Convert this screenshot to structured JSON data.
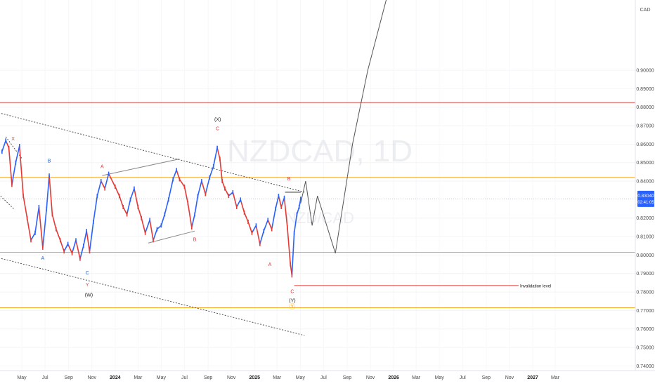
{
  "chart_data": {
    "type": "line",
    "symbol": "NZDCAD, 1D",
    "symbol_sub": "NZD/CAD",
    "currency": "CAD",
    "ylim": [
      0.7375,
      0.938
    ],
    "y_ticks": [
      {
        "label": "0.90000",
        "value": 0.9
      },
      {
        "label": "0.89000",
        "value": 0.89
      },
      {
        "label": "0.88000",
        "value": 0.88
      },
      {
        "label": "0.87000",
        "value": 0.87
      },
      {
        "label": "0.86000",
        "value": 0.86
      },
      {
        "label": "0.85000",
        "value": 0.85
      },
      {
        "label": "0.84000",
        "value": 0.84
      },
      {
        "label": "0.82000",
        "value": 0.82
      },
      {
        "label": "0.81000",
        "value": 0.81
      },
      {
        "label": "0.80000",
        "value": 0.8
      },
      {
        "label": "0.79000",
        "value": 0.79
      },
      {
        "label": "0.78000",
        "value": 0.78
      },
      {
        "label": "0.77000",
        "value": 0.77
      },
      {
        "label": "0.76000",
        "value": 0.76
      },
      {
        "label": "0.75000",
        "value": 0.75
      },
      {
        "label": "0.74000",
        "value": 0.74
      }
    ],
    "x_ticks": [
      {
        "label": "May",
        "date": "2023-05-01"
      },
      {
        "label": "Jul",
        "date": "2023-07-01"
      },
      {
        "label": "Sep",
        "date": "2023-09-01"
      },
      {
        "label": "Nov",
        "date": "2023-11-01"
      },
      {
        "label": "2024",
        "date": "2024-01-01",
        "bold": true
      },
      {
        "label": "Mar",
        "date": "2024-03-01"
      },
      {
        "label": "May",
        "date": "2024-05-01"
      },
      {
        "label": "Jul",
        "date": "2024-07-01"
      },
      {
        "label": "Sep",
        "date": "2024-09-01"
      },
      {
        "label": "Nov",
        "date": "2024-11-01"
      },
      {
        "label": "2025",
        "date": "2025-01-01",
        "bold": true
      },
      {
        "label": "Mar",
        "date": "2025-03-01"
      },
      {
        "label": "May",
        "date": "2025-05-01"
      },
      {
        "label": "Jul",
        "date": "2025-07-01"
      },
      {
        "label": "Sep",
        "date": "2025-09-01"
      },
      {
        "label": "Nov",
        "date": "2025-11-01"
      },
      {
        "label": "2026",
        "date": "2026-01-01",
        "bold": true
      },
      {
        "label": "Mar",
        "date": "2026-03-01"
      },
      {
        "label": "May",
        "date": "2026-05-01"
      },
      {
        "label": "Jul",
        "date": "2026-07-01"
      },
      {
        "label": "Sep",
        "date": "2026-09-01"
      },
      {
        "label": "Nov",
        "date": "2026-11-01"
      },
      {
        "label": "2027",
        "date": "2027-01-01",
        "bold": true
      },
      {
        "label": "Mar",
        "date": "2027-03-01"
      }
    ],
    "current_price": {
      "label": "0.83040",
      "countdown": "02:41:05",
      "value": 0.8304
    },
    "price_series": [
      [
        "2023-03-10",
        0.856
      ],
      [
        "2023-03-20",
        0.862
      ],
      [
        "2023-03-28",
        0.858
      ],
      [
        "2023-04-05",
        0.838
      ],
      [
        "2023-04-15",
        0.85
      ],
      [
        "2023-04-25",
        0.859
      ],
      [
        "2023-05-05",
        0.832
      ],
      [
        "2023-05-15",
        0.82
      ],
      [
        "2023-05-25",
        0.808
      ],
      [
        "2023-06-05",
        0.812
      ],
      [
        "2023-06-15",
        0.826
      ],
      [
        "2023-06-25",
        0.804
      ],
      [
        "2023-07-05",
        0.825
      ],
      [
        "2023-07-12",
        0.843
      ],
      [
        "2023-07-20",
        0.822
      ],
      [
        "2023-07-30",
        0.814
      ],
      [
        "2023-08-10",
        0.808
      ],
      [
        "2023-08-20",
        0.802
      ],
      [
        "2023-08-30",
        0.806
      ],
      [
        "2023-09-10",
        0.801
      ],
      [
        "2023-09-20",
        0.808
      ],
      [
        "2023-10-01",
        0.798
      ],
      [
        "2023-10-10",
        0.805
      ],
      [
        "2023-10-18",
        0.813
      ],
      [
        "2023-10-26",
        0.802
      ],
      [
        "2023-11-05",
        0.818
      ],
      [
        "2023-11-15",
        0.832
      ],
      [
        "2023-11-25",
        0.84
      ],
      [
        "2023-12-05",
        0.836
      ],
      [
        "2023-12-15",
        0.844
      ],
      [
        "2024-01-01",
        0.837
      ],
      [
        "2024-01-12",
        0.832
      ],
      [
        "2024-01-22",
        0.826
      ],
      [
        "2024-02-01",
        0.822
      ],
      [
        "2024-02-10",
        0.83
      ],
      [
        "2024-02-20",
        0.836
      ],
      [
        "2024-03-01",
        0.826
      ],
      [
        "2024-03-10",
        0.82
      ],
      [
        "2024-03-20",
        0.812
      ],
      [
        "2024-04-01",
        0.819
      ],
      [
        "2024-04-10",
        0.808
      ],
      [
        "2024-04-20",
        0.814
      ],
      [
        "2024-05-01",
        0.816
      ],
      [
        "2024-05-10",
        0.822
      ],
      [
        "2024-05-20",
        0.83
      ],
      [
        "2024-06-01",
        0.841
      ],
      [
        "2024-06-10",
        0.846
      ],
      [
        "2024-06-18",
        0.841
      ],
      [
        "2024-07-01",
        0.837
      ],
      [
        "2024-07-10",
        0.828
      ],
      [
        "2024-07-20",
        0.815
      ],
      [
        "2024-07-28",
        0.822
      ],
      [
        "2024-08-05",
        0.832
      ],
      [
        "2024-08-15",
        0.84
      ],
      [
        "2024-08-25",
        0.833
      ],
      [
        "2024-09-05",
        0.842
      ],
      [
        "2024-09-15",
        0.848
      ],
      [
        "2024-09-25",
        0.858
      ],
      [
        "2024-10-02",
        0.852
      ],
      [
        "2024-10-08",
        0.84
      ],
      [
        "2024-10-15",
        0.836
      ],
      [
        "2024-10-25",
        0.832
      ],
      [
        "2024-11-05",
        0.834
      ],
      [
        "2024-11-15",
        0.826
      ],
      [
        "2024-11-25",
        0.83
      ],
      [
        "2024-12-05",
        0.823
      ],
      [
        "2024-12-15",
        0.818
      ],
      [
        "2024-12-25",
        0.812
      ],
      [
        "2025-01-05",
        0.816
      ],
      [
        "2025-01-15",
        0.806
      ],
      [
        "2025-01-25",
        0.813
      ],
      [
        "2025-02-05",
        0.819
      ],
      [
        "2025-02-15",
        0.814
      ],
      [
        "2025-02-25",
        0.825
      ],
      [
        "2025-03-05",
        0.832
      ],
      [
        "2025-03-12",
        0.826
      ],
      [
        "2025-03-20",
        0.831
      ],
      [
        "2025-03-28",
        0.815
      ],
      [
        "2025-04-05",
        0.795
      ],
      [
        "2025-04-09",
        0.789
      ],
      [
        "2025-04-15",
        0.812
      ],
      [
        "2025-04-22",
        0.822
      ],
      [
        "2025-04-28",
        0.826
      ],
      [
        "2025-05-02",
        0.8304
      ]
    ],
    "projection": [
      [
        "2025-05-02",
        0.828
      ],
      [
        "2025-05-15",
        0.84
      ],
      [
        "2025-06-01",
        0.816
      ],
      [
        "2025-06-15",
        0.832
      ],
      [
        "2025-08-01",
        0.801
      ],
      [
        "2025-09-15",
        0.86
      ],
      [
        "2025-10-25",
        0.9
      ],
      [
        "2025-12-15",
        0.94
      ]
    ],
    "horizontal_levels": [
      {
        "value": 0.8825,
        "color": "#e53935"
      },
      {
        "value": 0.842,
        "color": "#f5a623"
      },
      {
        "value": 0.8015,
        "color": "#f5a623"
      },
      {
        "value": 0.7715,
        "color": "#f5a623"
      },
      {
        "value": 0.8304,
        "color": "#9fd3f0",
        "style": "dotted"
      }
    ],
    "invalidation": {
      "label": "Invalidation level",
      "value": 0.7835,
      "from": "2025-04-15",
      "to": "2026-11-25",
      "color": "#e53935"
    },
    "channel_lines": [
      {
        "from": [
          "2023-03-01",
          0.877
        ],
        "to": [
          "2025-05-12",
          0.834
        ]
      },
      {
        "from": [
          "2023-03-01",
          0.7985
        ],
        "to": [
          "2025-05-12",
          0.7565
        ]
      }
    ],
    "wedge_lines": [
      {
        "from": [
          "2023-11-28",
          0.843
        ],
        "to": [
          "2024-06-18",
          0.852
        ]
      },
      {
        "from": [
          "2024-03-28",
          0.8065
        ],
        "to": [
          "2024-07-28",
          0.813
        ]
      }
    ],
    "small_wedge": [
      {
        "from": [
          "2023-03-20",
          0.864
        ],
        "to": [
          "2023-05-02",
          0.852
        ]
      },
      {
        "from": [
          "2023-03-01",
          0.833
        ],
        "to": [
          "2023-04-10",
          0.825
        ]
      }
    ],
    "resistance_segment": {
      "from": [
        "2025-03-22",
        0.834
      ],
      "to": [
        "2025-05-02",
        0.834
      ]
    },
    "wave_labels": [
      {
        "text": "X",
        "date": "2023-04-08",
        "value": 0.862,
        "color": "#e53935"
      },
      {
        "text": "B",
        "date": "2023-07-12",
        "value": 0.85,
        "color": "#1e63c7"
      },
      {
        "text": "A",
        "date": "2023-06-25",
        "value": 0.7975,
        "color": "#1e63c7"
      },
      {
        "text": "C",
        "date": "2023-10-20",
        "value": 0.7895,
        "color": "#1e63c7"
      },
      {
        "text": "Y",
        "date": "2023-10-20",
        "value": 0.783,
        "color": "#e53935"
      },
      {
        "text": "(W)",
        "date": "2023-10-24",
        "value": 0.7775,
        "color": "#222222"
      },
      {
        "text": "A",
        "date": "2023-11-28",
        "value": 0.847,
        "color": "#e53935"
      },
      {
        "text": "B",
        "date": "2024-07-28",
        "value": 0.8075,
        "color": "#e53935"
      },
      {
        "text": "C",
        "date": "2024-09-26",
        "value": 0.8675,
        "color": "#e53935"
      },
      {
        "text": "(X)",
        "date": "2024-09-26",
        "value": 0.8725,
        "color": "#222222"
      },
      {
        "text": "A",
        "date": "2025-02-10",
        "value": 0.794,
        "color": "#e53935"
      },
      {
        "text": "B",
        "date": "2025-04-01",
        "value": 0.8405,
        "color": "#e53935"
      },
      {
        "text": "C",
        "date": "2025-04-10",
        "value": 0.7795,
        "color": "#e53935"
      },
      {
        "text": "(Y)",
        "date": "2025-04-10",
        "value": 0.7745,
        "color": "#222222"
      }
    ],
    "circle_marker": {
      "text": "Ⓨ",
      "date": "2025-04-10",
      "value": 0.771,
      "color": "#f5a623"
    }
  }
}
